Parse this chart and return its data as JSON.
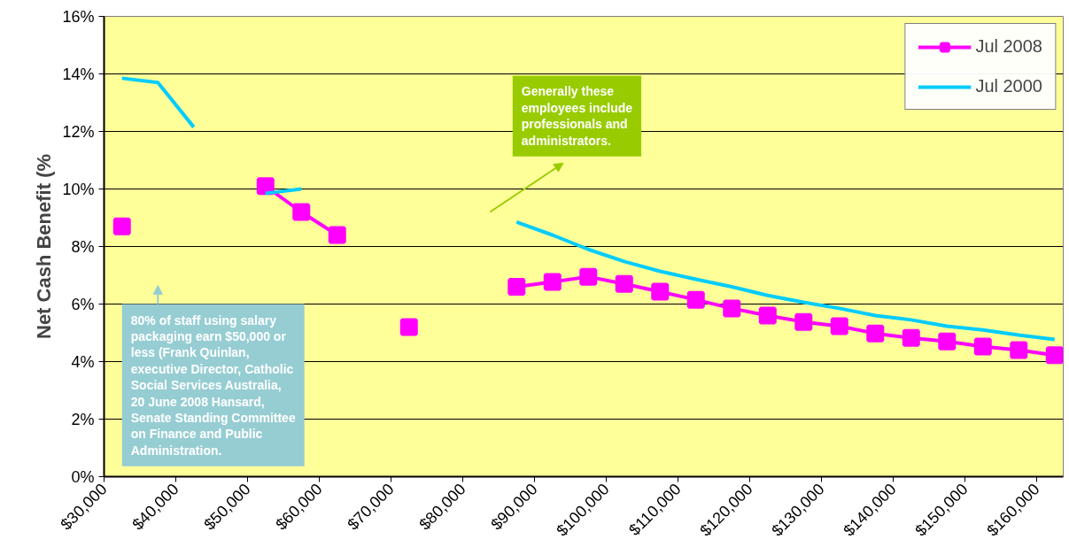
{
  "chart_data": {
    "type": "line",
    "ylabel": "Net Cash Benefit (%",
    "x": [
      32500,
      37500,
      42500,
      47500,
      52500,
      57500,
      62500,
      67500,
      72500,
      77500,
      82500,
      87500,
      92500,
      97500,
      102500,
      107500,
      112500,
      117500,
      122500,
      127500,
      132500,
      137500,
      142500,
      147500,
      152500,
      157500,
      162500
    ],
    "series": [
      {
        "name": "Jul 2008",
        "color": "#ff00ff",
        "marker": "square",
        "values": [
          8.7,
          null,
          null,
          null,
          10.1,
          9.2,
          8.4,
          null,
          5.2,
          null,
          null,
          6.6,
          6.77,
          6.95,
          6.7,
          6.43,
          6.15,
          5.85,
          5.6,
          5.38,
          5.23,
          4.98,
          4.82,
          4.7,
          4.52,
          4.4,
          4.22
        ]
      },
      {
        "name": "Jul 2000",
        "color": "#00ccff",
        "marker": "none",
        "values": [
          13.85,
          13.7,
          12.15,
          null,
          9.85,
          10.0,
          null,
          null,
          null,
          null,
          null,
          8.85,
          8.4,
          7.9,
          7.48,
          7.14,
          6.86,
          6.6,
          6.3,
          6.06,
          5.85,
          5.6,
          5.45,
          5.23,
          5.1,
          4.92,
          4.77
        ]
      }
    ],
    "xlim": [
      30000,
      163700
    ],
    "xticks": [
      {
        "value": 30000,
        "label": "$30,000"
      },
      {
        "value": 40000,
        "label": "$40,000"
      },
      {
        "value": 50000,
        "label": "$50,000"
      },
      {
        "value": 60000,
        "label": "$60,000"
      },
      {
        "value": 70000,
        "label": "$70,000"
      },
      {
        "value": 80000,
        "label": "$80,000"
      },
      {
        "value": 90000,
        "label": "$90,000"
      },
      {
        "value": 100000,
        "label": "$100,000"
      },
      {
        "value": 110000,
        "label": "$110,000"
      },
      {
        "value": 120000,
        "label": "$120,000"
      },
      {
        "value": 130000,
        "label": "$130,000"
      },
      {
        "value": 140000,
        "label": "$140,000"
      },
      {
        "value": 150000,
        "label": "$150,000"
      },
      {
        "value": 160000,
        "label": "$160,000"
      }
    ],
    "ylim": [
      0,
      16
    ],
    "yticks": [
      {
        "value": 0,
        "label": "0%"
      },
      {
        "value": 2,
        "label": "2%"
      },
      {
        "value": 4,
        "label": "4%"
      },
      {
        "value": 6,
        "label": "6%"
      },
      {
        "value": 8,
        "label": "8%"
      },
      {
        "value": 10,
        "label": "10%"
      },
      {
        "value": 12,
        "label": "12%"
      },
      {
        "value": 14,
        "label": "14%"
      },
      {
        "value": 16,
        "label": "16%"
      }
    ],
    "grid": "y",
    "legend": "top right",
    "annotations": [
      "80% of staff using salary\npackaging earn $50,000 or\nless (Frank Quinlan,\nexecutive Director, Catholic\nSocial Services Australia,\n20 June 2008 Hansard,\nSenate Standing Committee\non Finance and Public\nAdministration.",
      "Generally these\nemployees include\nprofessionals and\nadministrators."
    ]
  }
}
